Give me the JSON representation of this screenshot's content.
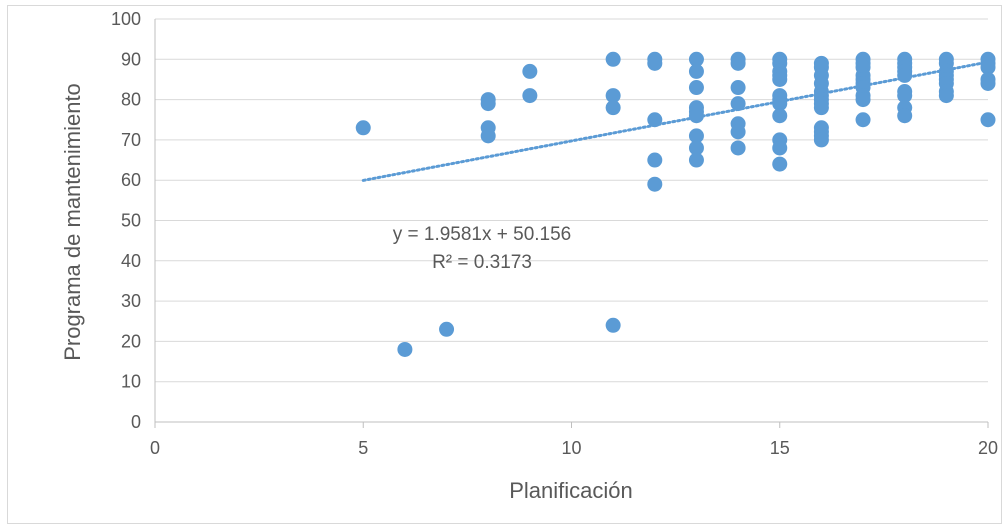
{
  "chart_data": {
    "type": "scatter",
    "title": "",
    "xlabel": "Planificación",
    "ylabel": "Programa de mantenimiento",
    "xlim": [
      0,
      20
    ],
    "ylim": [
      0,
      100
    ],
    "x_ticks": [
      "0",
      "5",
      "10",
      "15",
      "20"
    ],
    "y_ticks": [
      "0",
      "10",
      "20",
      "30",
      "40",
      "50",
      "60",
      "70",
      "80",
      "90",
      "100"
    ],
    "grid": true,
    "legend": "none",
    "point_color": "#5b9bd5",
    "trendline": {
      "type": "linear",
      "slope": 1.9581,
      "intercept": 50.156,
      "x_range": [
        5,
        20
      ],
      "equation_label": "y = 1.9581x + 50.156",
      "r2_label": "R² = 0.3173",
      "color": "#5b9bd5"
    },
    "points": [
      {
        "x": 5,
        "y": 73
      },
      {
        "x": 6,
        "y": 18
      },
      {
        "x": 7,
        "y": 23
      },
      {
        "x": 8,
        "y": 80
      },
      {
        "x": 8,
        "y": 79
      },
      {
        "x": 8,
        "y": 73
      },
      {
        "x": 8,
        "y": 71
      },
      {
        "x": 9,
        "y": 87
      },
      {
        "x": 9,
        "y": 81
      },
      {
        "x": 11,
        "y": 90
      },
      {
        "x": 11,
        "y": 81
      },
      {
        "x": 11,
        "y": 78
      },
      {
        "x": 11,
        "y": 24
      },
      {
        "x": 12,
        "y": 90
      },
      {
        "x": 12,
        "y": 89
      },
      {
        "x": 12,
        "y": 75
      },
      {
        "x": 12,
        "y": 65
      },
      {
        "x": 12,
        "y": 59
      },
      {
        "x": 13,
        "y": 90
      },
      {
        "x": 13,
        "y": 87
      },
      {
        "x": 13,
        "y": 83
      },
      {
        "x": 13,
        "y": 78
      },
      {
        "x": 13,
        "y": 77
      },
      {
        "x": 13,
        "y": 76
      },
      {
        "x": 13,
        "y": 71
      },
      {
        "x": 13,
        "y": 68
      },
      {
        "x": 13,
        "y": 65
      },
      {
        "x": 14,
        "y": 90
      },
      {
        "x": 14,
        "y": 89
      },
      {
        "x": 14,
        "y": 83
      },
      {
        "x": 14,
        "y": 79
      },
      {
        "x": 14,
        "y": 74
      },
      {
        "x": 14,
        "y": 72
      },
      {
        "x": 14,
        "y": 68
      },
      {
        "x": 15,
        "y": 90
      },
      {
        "x": 15,
        "y": 89
      },
      {
        "x": 15,
        "y": 87
      },
      {
        "x": 15,
        "y": 86
      },
      {
        "x": 15,
        "y": 85
      },
      {
        "x": 15,
        "y": 81
      },
      {
        "x": 15,
        "y": 80
      },
      {
        "x": 15,
        "y": 79
      },
      {
        "x": 15,
        "y": 76
      },
      {
        "x": 15,
        "y": 70
      },
      {
        "x": 15,
        "y": 68
      },
      {
        "x": 15,
        "y": 64
      },
      {
        "x": 16,
        "y": 89
      },
      {
        "x": 16,
        "y": 88
      },
      {
        "x": 16,
        "y": 86
      },
      {
        "x": 16,
        "y": 84
      },
      {
        "x": 16,
        "y": 82
      },
      {
        "x": 16,
        "y": 81
      },
      {
        "x": 16,
        "y": 80
      },
      {
        "x": 16,
        "y": 79
      },
      {
        "x": 16,
        "y": 78
      },
      {
        "x": 16,
        "y": 73
      },
      {
        "x": 16,
        "y": 72
      },
      {
        "x": 16,
        "y": 71
      },
      {
        "x": 16,
        "y": 70
      },
      {
        "x": 17,
        "y": 90
      },
      {
        "x": 17,
        "y": 89
      },
      {
        "x": 17,
        "y": 88
      },
      {
        "x": 17,
        "y": 86
      },
      {
        "x": 17,
        "y": 85
      },
      {
        "x": 17,
        "y": 84
      },
      {
        "x": 17,
        "y": 83
      },
      {
        "x": 17,
        "y": 81
      },
      {
        "x": 17,
        "y": 80
      },
      {
        "x": 17,
        "y": 75
      },
      {
        "x": 18,
        "y": 90
      },
      {
        "x": 18,
        "y": 89
      },
      {
        "x": 18,
        "y": 88
      },
      {
        "x": 18,
        "y": 87
      },
      {
        "x": 18,
        "y": 86
      },
      {
        "x": 18,
        "y": 82
      },
      {
        "x": 18,
        "y": 81
      },
      {
        "x": 18,
        "y": 78
      },
      {
        "x": 18,
        "y": 76
      },
      {
        "x": 19,
        "y": 90
      },
      {
        "x": 19,
        "y": 89
      },
      {
        "x": 19,
        "y": 87
      },
      {
        "x": 19,
        "y": 86
      },
      {
        "x": 19,
        "y": 85
      },
      {
        "x": 19,
        "y": 84
      },
      {
        "x": 19,
        "y": 82
      },
      {
        "x": 19,
        "y": 81
      },
      {
        "x": 20,
        "y": 90
      },
      {
        "x": 20,
        "y": 89
      },
      {
        "x": 20,
        "y": 88
      },
      {
        "x": 20,
        "y": 85
      },
      {
        "x": 20,
        "y": 84
      },
      {
        "x": 20,
        "y": 75
      }
    ]
  }
}
